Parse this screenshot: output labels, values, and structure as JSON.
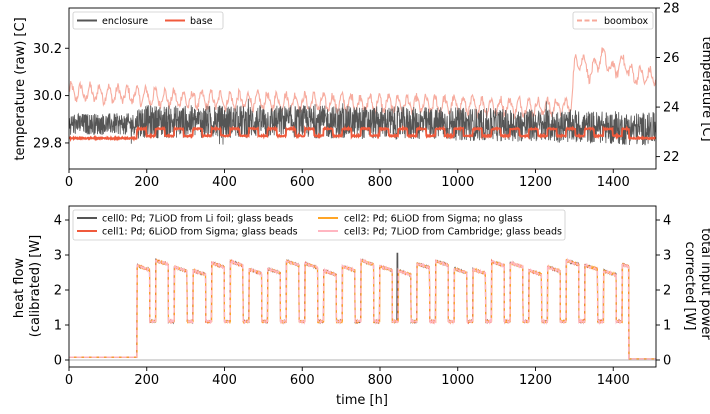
{
  "chart_data": [
    {
      "type": "line",
      "xlabel": "",
      "ylabel": "temperature (raw) [C]",
      "ylabel_right": "temperature [C]",
      "xlim": [
        0,
        1510
      ],
      "ylim": [
        29.69,
        30.37
      ],
      "ylim_right": [
        21.5,
        28
      ],
      "xticks": [
        "0",
        "200",
        "400",
        "600",
        "800",
        "1000",
        "1200",
        "1400"
      ],
      "yticks": [
        "29.8",
        "30.0",
        "30.2"
      ],
      "yticks_right": [
        "22",
        "24",
        "26",
        "28"
      ],
      "legend_left": [
        "enclosure",
        "base"
      ],
      "legend_right": [
        "boombox"
      ],
      "series": [
        {
          "name": "enclosure",
          "axis": "left",
          "color": "#555555",
          "mean": 29.88,
          "amplitude": 0.07,
          "x": [
            0,
            170,
            180,
            600,
            1000,
            1300,
            1440,
            1510
          ],
          "y": [
            29.88,
            29.88,
            29.89,
            29.89,
            29.88,
            29.87,
            29.86,
            29.86
          ]
        },
        {
          "name": "base",
          "axis": "left",
          "color": "#f05a3c",
          "x": [
            0,
            175,
            176,
            1440,
            1441,
            1510
          ],
          "y": [
            29.82,
            29.82,
            29.84,
            29.84,
            29.82,
            29.82
          ],
          "cycle_hours": 48,
          "cycle_high": 29.86,
          "cycle_low": 29.83
        },
        {
          "name": "boombox",
          "axis": "right",
          "color": "#f7a89a",
          "x": [
            0,
            150,
            300,
            600,
            900,
            1200,
            1290,
            1300,
            1400,
            1450,
            1510
          ],
          "y": [
            24.6,
            24.5,
            24.3,
            24.2,
            24.1,
            24.0,
            24.0,
            25.6,
            25.8,
            25.3,
            25.2
          ],
          "cycle_hours": 24,
          "cycle_amplitude": 0.5
        }
      ]
    },
    {
      "type": "line",
      "xlabel": "time [h]",
      "ylabel": "heat flow\n(calibrated) [W]",
      "ylabel_right": "total input power\ncorrected [W]",
      "xlim": [
        0,
        1510
      ],
      "ylim": [
        -0.2,
        4.4
      ],
      "ylim_right": [
        -0.2,
        4.4
      ],
      "xticks": [
        "0",
        "200",
        "400",
        "600",
        "800",
        "1000",
        "1200",
        "1400"
      ],
      "yticks": [
        "0",
        "1",
        "2",
        "3",
        "4"
      ],
      "yticks_right": [
        "0",
        "1",
        "2",
        "3",
        "4"
      ],
      "legend": [
        "cell0: Pd; 7LiOD from Li foil; glass beads",
        "cell1: Pd; 6LiOD from Sigma; glass beads",
        "cell2: Pd; 6LiOD from Sigma; no glass",
        "cell3: Pd; 7LiOD from Cambridge; glass beads"
      ],
      "series": [
        {
          "name": "cell0: Pd; 7LiOD from Li foil; glass beads",
          "color": "#555555"
        },
        {
          "name": "cell1: Pd; 6LiOD from Sigma; glass beads",
          "color": "#f05a3c"
        },
        {
          "name": "cell2: Pd; 6LiOD from Sigma; no glass",
          "color": "#ffa526"
        },
        {
          "name": "cell3: Pd; 7LiOD from Cambridge; glass beads",
          "color": "#ffb6c1"
        }
      ],
      "pulse_train": {
        "baseline_before": 0.08,
        "baseline_after": 0.03,
        "start": 175,
        "end": 1440,
        "period": 48,
        "high_min": 2.55,
        "high_max": 2.85,
        "low": 1.1,
        "high_fraction": 0.68,
        "spike": {
          "x": 845,
          "y": 3.05
        }
      }
    }
  ]
}
